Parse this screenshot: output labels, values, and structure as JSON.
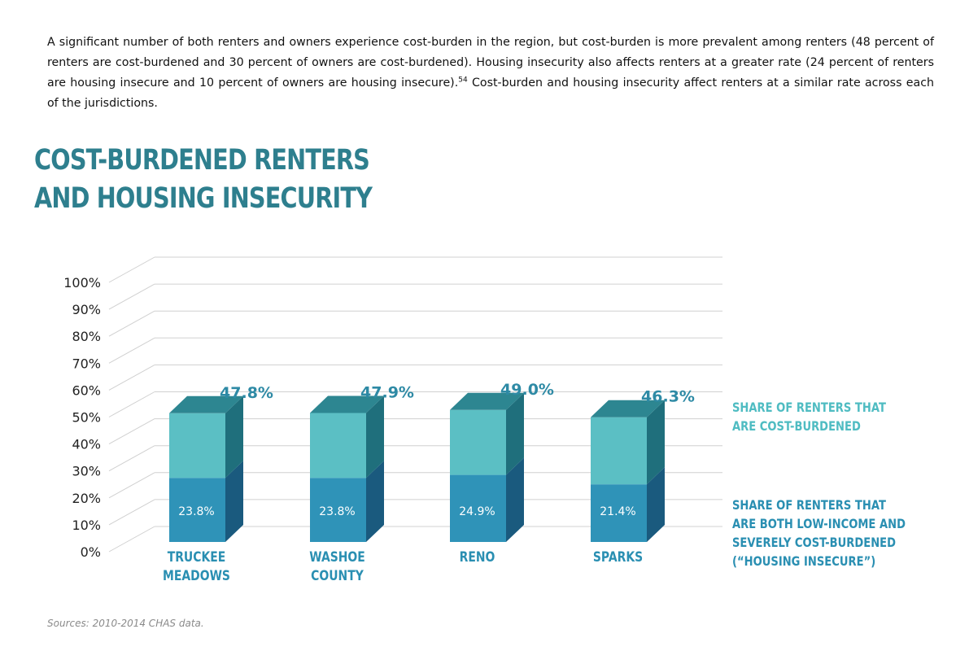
{
  "intro": {
    "part1": "A significant number of both renters and owners experience cost-burden in the region, but cost-burden is more prevalent among renters (48 percent of renters are cost-burdened and 30 percent of owners are cost-burdened). Housing insecurity also affects renters at a greater rate (24 percent of renters are housing insecure and 10 percent of owners are housing insecure).",
    "footnote": "54",
    "part2": " Cost-burden and housing insecurity affect renters at a similar rate across each of the jurisdictions."
  },
  "title": {
    "line1": "COST-BURDENED RENTERS",
    "line2": "AND HOUSING INSECURITY"
  },
  "chart_data": {
    "type": "bar",
    "title": "COST-BURDENED RENTERS AND HOUSING INSECURITY",
    "categories": [
      [
        "TRUCKEE",
        "MEADOWS"
      ],
      [
        "WASHOE",
        "COUNTY"
      ],
      [
        "RENO"
      ],
      [
        "SPARKS"
      ]
    ],
    "series": [
      {
        "name": "SHARE OF RENTERS THAT ARE COST-BURDENED",
        "values": [
          47.8,
          47.9,
          49.0,
          46.3
        ],
        "labels": [
          "47.8%",
          "47.9%",
          "49.0%",
          "46.3%"
        ]
      },
      {
        "name": "SHARE OF RENTERS THAT ARE BOTH LOW-INCOME AND SEVERELY COST-BURDENED (“HOUSING INSECURE”)",
        "values": [
          23.8,
          23.8,
          24.9,
          21.4
        ],
        "labels": [
          "23.8%",
          "23.8%",
          "24.9%",
          "21.4%"
        ]
      }
    ],
    "yticks": [
      "0%",
      "10%",
      "20%",
      "30%",
      "40%",
      "50%",
      "60%",
      "70%",
      "80%",
      "90%",
      "100%"
    ],
    "ylim": [
      0,
      100
    ],
    "grid": true,
    "legend": {
      "position": "right",
      "cost_burdened": [
        "SHARE OF RENTERS THAT",
        "ARE COST-BURDENED"
      ],
      "housing_insecure": [
        "SHARE OF RENTERS THAT",
        "ARE BOTH LOW-INCOME AND",
        "SEVERELY COST-BURDENED",
        "(“HOUSING INSECURE”)"
      ]
    },
    "colors": {
      "upper_front": "#5bbfc4",
      "upper_side": "#1f6f7c",
      "upper_top": "#2d8691",
      "lower_front": "#2f93b8",
      "lower_side": "#1a5a7e",
      "grid": "#d0d0d0",
      "value_label": "#2e8aa5",
      "category": "#2a8fb2",
      "legend_upper": "#4fbcc2",
      "legend_lower": "#2a8fb2"
    }
  },
  "source": "Sources: 2010-2014 CHAS data.",
  "colors": {
    "title": "#2e7f8e"
  }
}
